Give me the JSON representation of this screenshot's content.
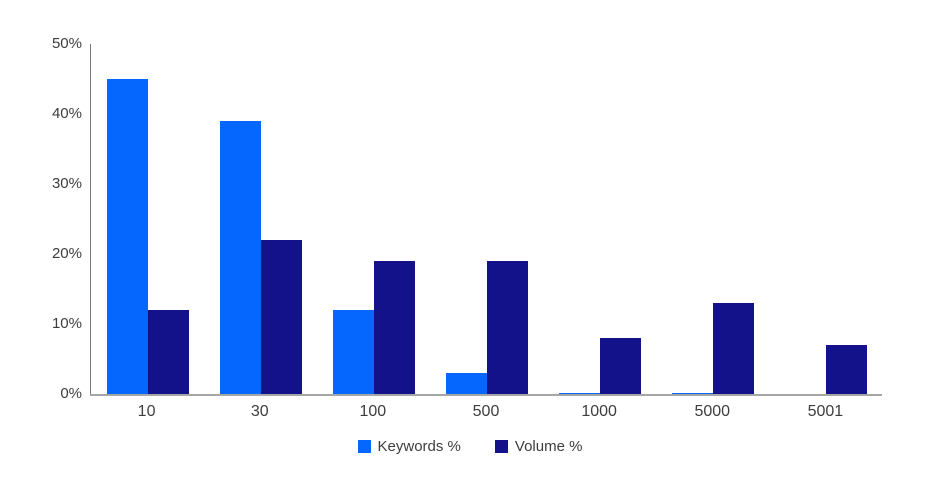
{
  "chart_data": {
    "type": "bar",
    "title": "",
    "xlabel": "",
    "ylabel": "",
    "categories": [
      "10",
      "30",
      "100",
      "500",
      "1000",
      "5000",
      "5001"
    ],
    "series": [
      {
        "name": "Keywords %",
        "color": "#0667FF",
        "values": [
          45,
          39,
          12,
          3,
          0.2,
          0.2,
          0
        ]
      },
      {
        "name": "Volume %",
        "color": "#13128B",
        "values": [
          12,
          22,
          19,
          19,
          8,
          13,
          7
        ]
      }
    ],
    "ylim": [
      0,
      50
    ],
    "y_ticks": [
      "0%",
      "10%",
      "20%",
      "30%",
      "40%",
      "50%"
    ],
    "grid": false,
    "legend_position": "bottom",
    "axis_color": "#7a7a7a",
    "baseline_color": "#a6a6a6",
    "tick_label_color": "#3d3d3d"
  }
}
